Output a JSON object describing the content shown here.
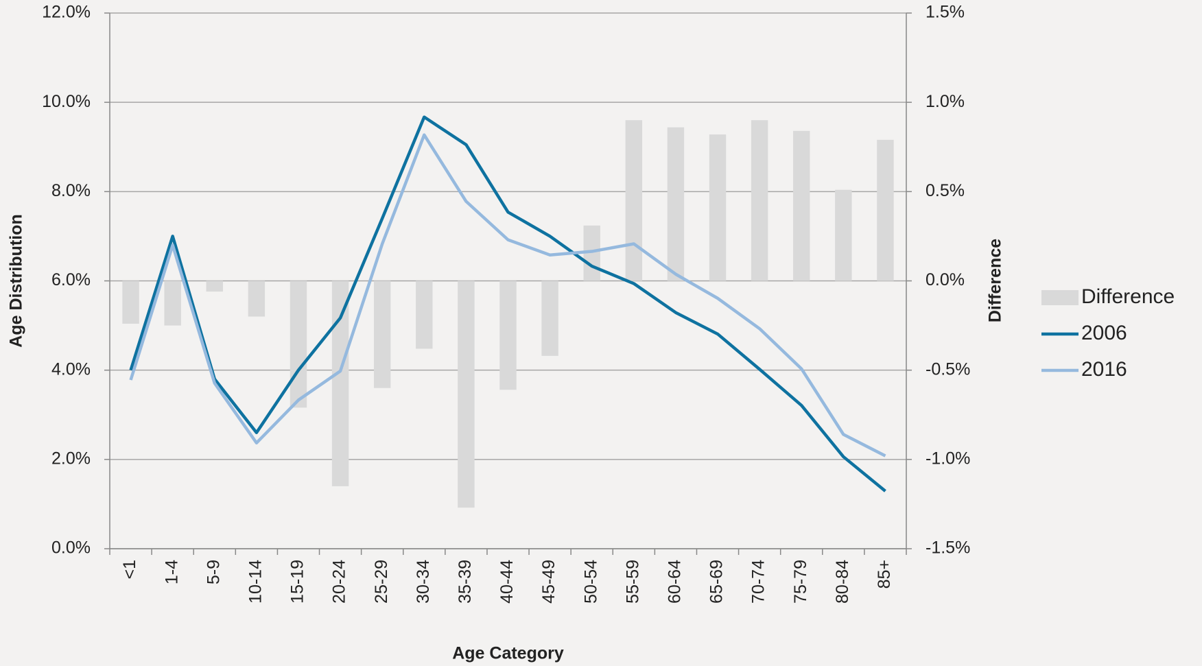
{
  "chart_data": {
    "type": "combo",
    "x_label": "Age Category",
    "y_label": "Age Distribution",
    "y2_label": "Difference",
    "categories": [
      "<1",
      "1-4",
      "5-9",
      "10-14",
      "15-19",
      "20-24",
      "25-29",
      "30-34",
      "35-39",
      "40-44",
      "45-49",
      "50-54",
      "55-59",
      "60-64",
      "65-69",
      "70-74",
      "75-79",
      "80-84",
      "85+"
    ],
    "series": [
      {
        "name": "Difference",
        "type": "bar",
        "axis": "y2",
        "color": "#d9d9d9",
        "values": [
          -0.24,
          -0.25,
          -0.06,
          -0.2,
          -0.71,
          -1.15,
          -0.6,
          -0.38,
          -1.27,
          -0.61,
          -0.42,
          0.31,
          0.9,
          0.86,
          0.82,
          0.9,
          0.84,
          0.51,
          0.79
        ]
      },
      {
        "name": "2006",
        "type": "line",
        "color": "#0e72a0",
        "values": [
          4.0,
          7.0,
          3.8,
          2.6,
          4.0,
          5.17,
          7.4,
          9.67,
          9.05,
          7.54,
          7.0,
          6.33,
          5.94,
          5.29,
          4.81,
          4.02,
          3.21,
          2.06,
          1.29
        ]
      },
      {
        "name": "2016",
        "type": "line",
        "color": "#95b9de",
        "values": [
          3.78,
          6.8,
          3.71,
          2.37,
          3.33,
          3.98,
          6.83,
          9.27,
          7.78,
          6.92,
          6.58,
          6.66,
          6.83,
          6.15,
          5.61,
          4.93,
          4.03,
          2.56,
          2.08
        ]
      }
    ],
    "ylim": [
      0,
      12
    ],
    "yticks": [
      {
        "value": 0,
        "label": "0.0%"
      },
      {
        "value": 2,
        "label": "2.0%"
      },
      {
        "value": 4,
        "label": "4.0%"
      },
      {
        "value": 6,
        "label": "6.0%"
      },
      {
        "value": 8,
        "label": "8.0%"
      },
      {
        "value": 10,
        "label": "10.0%"
      },
      {
        "value": 12,
        "label": "12.0%"
      }
    ],
    "y2lim": [
      -1.5,
      1.5
    ],
    "y2ticks": [
      {
        "value": -1.5,
        "label": "-1.5%"
      },
      {
        "value": -1,
        "label": "-1.0%"
      },
      {
        "value": -0.5,
        "label": "-0.5%"
      },
      {
        "value": 0,
        "label": "0.0%"
      },
      {
        "value": 0.5,
        "label": "0.5%"
      },
      {
        "value": 1,
        "label": "1.0%"
      },
      {
        "value": 1.5,
        "label": "1.5%"
      }
    ],
    "grid": true,
    "legend": "right"
  }
}
